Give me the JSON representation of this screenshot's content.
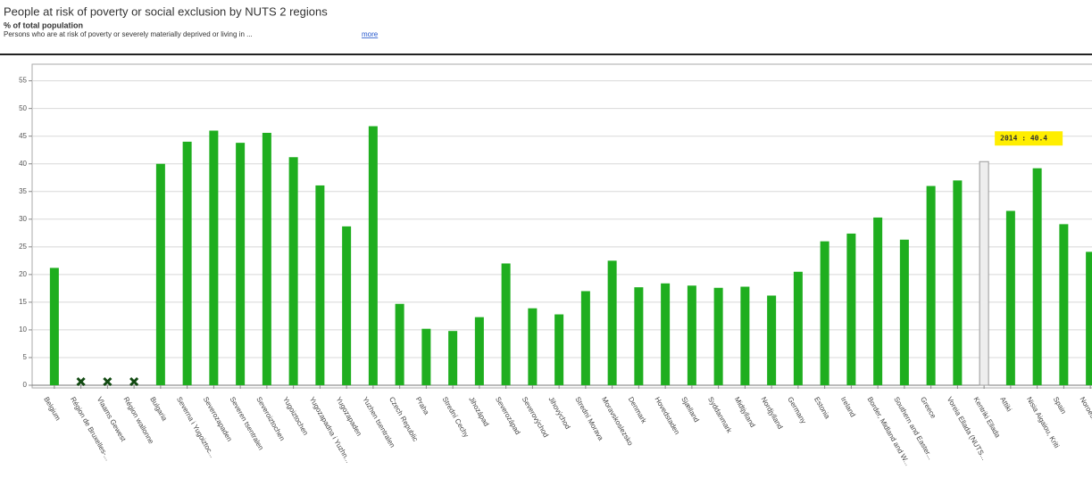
{
  "chart_data": {
    "type": "bar",
    "title": "People at risk of poverty or social exclusion by NUTS 2 regions",
    "subtitle": "% of total population",
    "description": "Persons who are at risk of poverty or severely materially deprived or living in ...",
    "link": "more",
    "tooltip": "2014 : 40.4",
    "categories": [
      "Belgium",
      "Région de Bruxelles-...",
      "Vlaams Gewest",
      "Région wallonne",
      "Bulgaria",
      "Severna i Yugoiztoc...",
      "Severozapaden",
      "Severen tsentralen",
      "Severoiztochen",
      "Yugoiztochen",
      "Yugozapadna i Yuzhn...",
      "Yugozapaden",
      "Yuzhen tsentralen",
      "Czech Republic",
      "Praha",
      "Strední Cechy",
      "Jihozápad",
      "Severozápad",
      "Severovýchod",
      "Jihovýchod",
      "Strední Morava",
      "Moravskoslezsko",
      "Denmark",
      "Hovedstaden",
      "Sjælland",
      "Syddanmark",
      "Midtjylland",
      "Nordjylland",
      "Germany",
      "Estonia",
      "Ireland",
      "Border, Midland and W...",
      "Southern and Easter...",
      "Greece",
      "Voreia Ellada (NUTS...",
      "Kentriki Ellada",
      "Attiki",
      "Nisia Aigaiou, Kriti",
      "Spain",
      "Noroeste"
    ],
    "values": [
      21.2,
      null,
      null,
      null,
      40,
      44,
      46,
      43.8,
      45.6,
      41.2,
      36.1,
      28.7,
      46.8,
      14.7,
      10.2,
      9.8,
      12.3,
      22,
      13.9,
      12.8,
      17,
      22.5,
      17.7,
      18.4,
      18,
      17.6,
      17.8,
      16.2,
      20.5,
      26,
      27.4,
      30.3,
      26.3,
      36,
      37,
      40.4,
      31.5,
      39.2,
      29.1,
      24.1
    ],
    "color": "#1fae1f",
    "highlight_index": 35,
    "highlight_color": "#eeeeee",
    "ylim": [
      0,
      58
    ],
    "yticks": [
      0,
      5,
      10,
      15,
      20,
      25,
      30,
      35,
      40,
      45,
      50,
      55
    ],
    "grid": true
  }
}
